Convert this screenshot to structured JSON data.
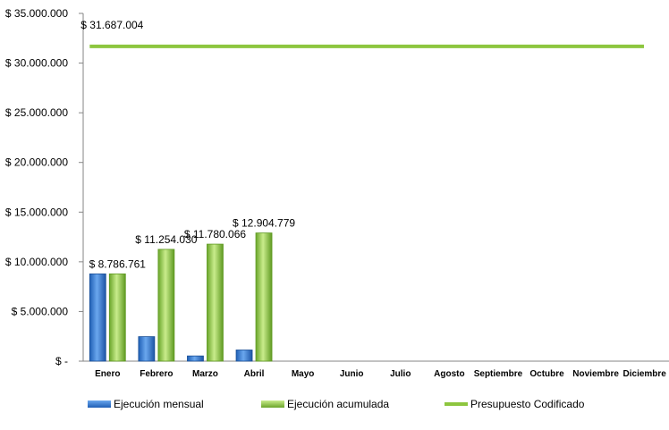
{
  "chart_data": {
    "type": "bar",
    "title": "",
    "xlabel": "",
    "ylabel": "",
    "ylim": [
      0,
      35000000
    ],
    "yticks": [
      {
        "value": 0,
        "label": "$ -"
      },
      {
        "value": 5000000,
        "label": "$ 5.000.000"
      },
      {
        "value": 10000000,
        "label": "$ 10.000.000"
      },
      {
        "value": 15000000,
        "label": "$ 15.000.000"
      },
      {
        "value": 20000000,
        "label": "$ 20.000.000"
      },
      {
        "value": 25000000,
        "label": "$ 25.000.000"
      },
      {
        "value": 30000000,
        "label": "$ 30.000.000"
      },
      {
        "value": 35000000,
        "label": "$ 35.000.000"
      }
    ],
    "categories": [
      "Enero",
      "Febrero",
      "Marzo",
      "Abril",
      "Mayo",
      "Junio",
      "Julio",
      "Agosto",
      "Septiembre",
      "Octubre",
      "Noviembre",
      "Diciembre"
    ],
    "series": [
      {
        "name": "Ejecución mensual",
        "kind": "bar",
        "color": "#3d7fd6",
        "values": [
          8786761,
          2467269,
          526036,
          1124713,
          null,
          null,
          null,
          null,
          null,
          null,
          null,
          null
        ]
      },
      {
        "name": "Ejecución acumulada",
        "kind": "bar",
        "color": "#8dc63f",
        "values": [
          8786761,
          11254030,
          11780066,
          12904779,
          null,
          null,
          null,
          null,
          null,
          null,
          null,
          null
        ],
        "data_labels": [
          "$ 8.786.761",
          "$ 11.254.030",
          "$ 11.780.066",
          "$ 12.904.779"
        ]
      },
      {
        "name": "Presupuesto Codificado",
        "kind": "line",
        "color": "#8dc63f",
        "value": 31687004,
        "data_label": "$ 31.687.004"
      }
    ],
    "legend_position": "bottom",
    "grid": false
  }
}
